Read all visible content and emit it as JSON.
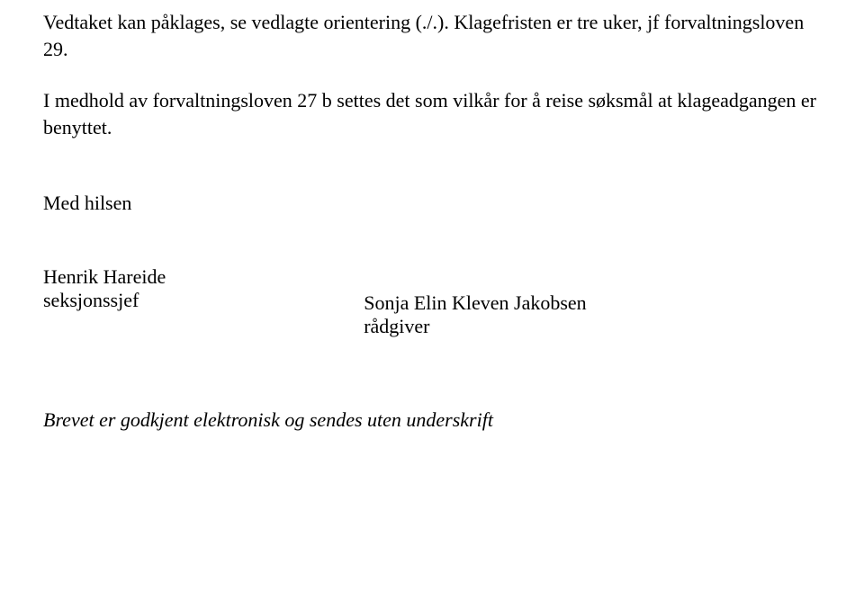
{
  "document": {
    "paragraphs": [
      "Vedtaket kan påklages, se vedlagte orientering (./.). Klagefristen er tre uker, jf forvaltningsloven 29.",
      "I medhold av forvaltningsloven 27 b settes det som vilkår for å reise søksmål at klageadgangen er benyttet."
    ],
    "closing": "Med hilsen",
    "signatories": {
      "left": {
        "name": "Henrik Hareide",
        "title": "seksjonssjef"
      },
      "right": {
        "name": "Sonja Elin Kleven Jakobsen",
        "title": "rådgiver"
      }
    },
    "footer_note": "Brevet er godkjent elektronisk og sendes uten underskrift"
  },
  "style": {
    "font_family": "Palatino Linotype",
    "font_size_pt": 16,
    "text_color": "#000000",
    "background_color": "#ffffff"
  }
}
